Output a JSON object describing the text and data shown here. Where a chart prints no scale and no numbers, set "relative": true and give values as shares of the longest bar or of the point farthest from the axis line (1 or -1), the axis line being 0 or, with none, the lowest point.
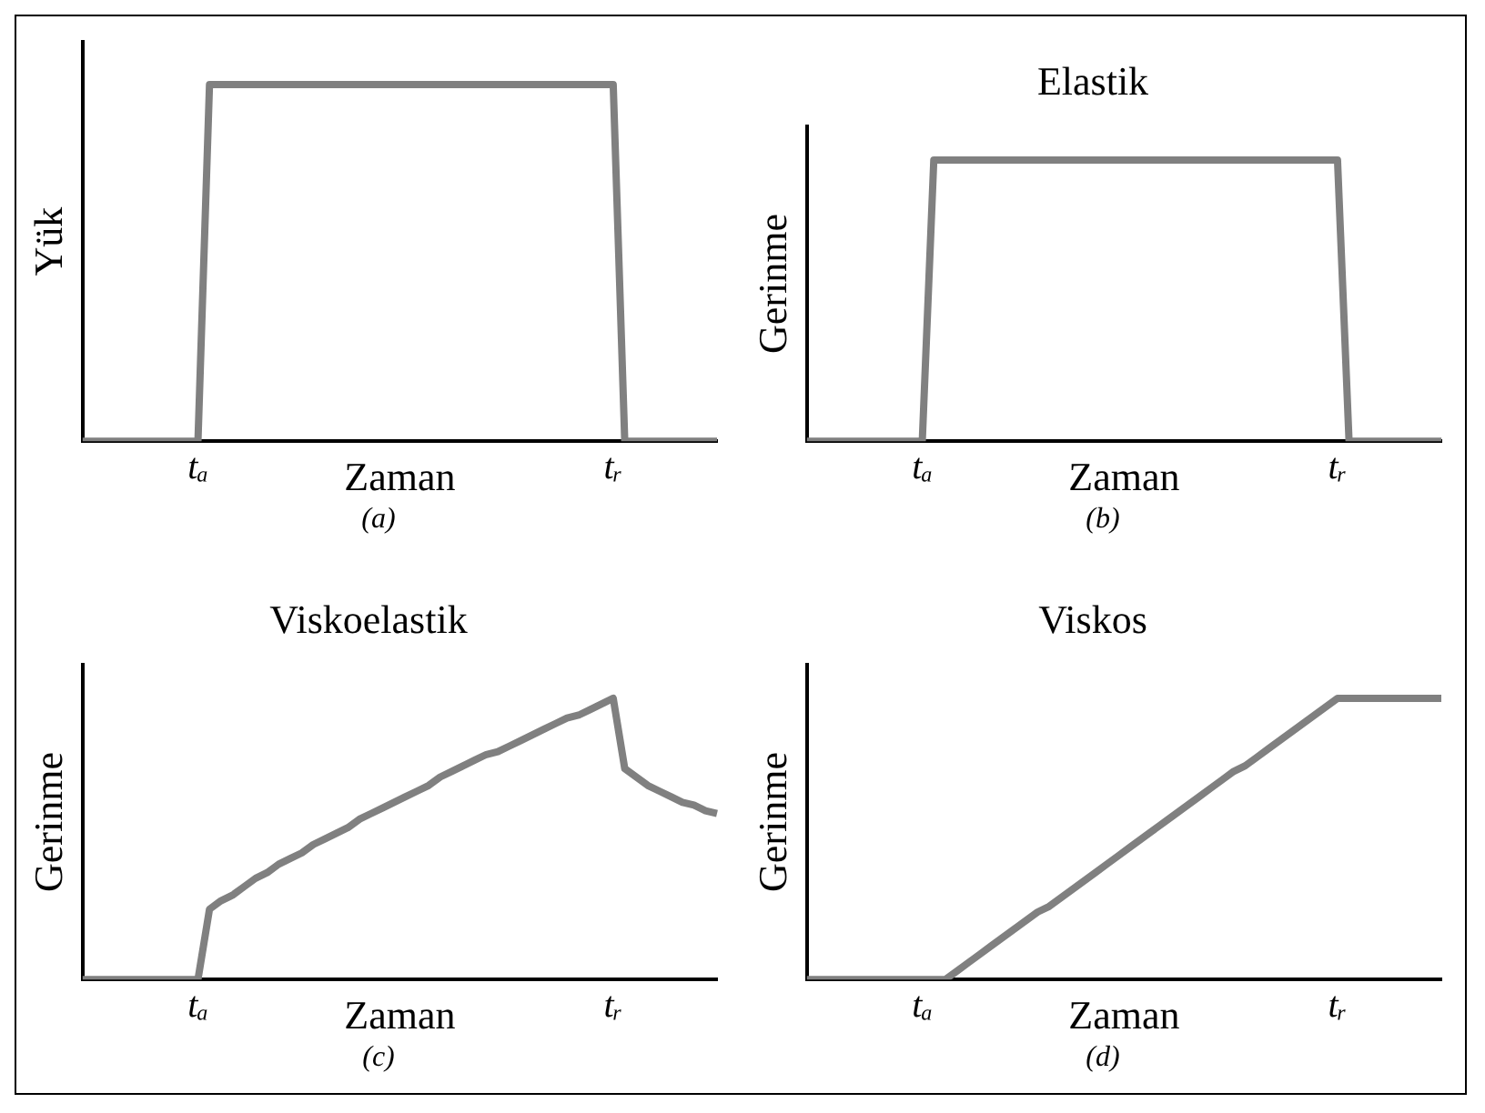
{
  "chart_data": [
    {
      "type": "line",
      "ylabel": "Yük",
      "xlabel": "Zaman",
      "relative": true,
      "grid": false,
      "legend": false,
      "marker": "none",
      "annotations": [
        "(a)"
      ],
      "categories": [
        null,
        null,
        null,
        null,
        null,
        null,
        null,
        null,
        null,
        null,
        "tₐ",
        null,
        null,
        null,
        null,
        null,
        null,
        null,
        null,
        null,
        null,
        null,
        null,
        null,
        null,
        null,
        null,
        null,
        null,
        null,
        null,
        null,
        null,
        null,
        null,
        null,
        null,
        null,
        null,
        null,
        null,
        null,
        null,
        null,
        null,
        null,
        "tᵣ",
        null,
        null,
        null,
        null,
        null,
        null,
        null,
        null,
        null
      ],
      "series": [
        {
          "color": "#808080",
          "values": [
            0,
            0,
            0,
            0,
            0,
            0,
            0,
            0,
            0,
            0,
            0,
            1,
            1,
            1,
            1,
            1,
            1,
            1,
            1,
            1,
            1,
            1,
            1,
            1,
            1,
            1,
            1,
            1,
            1,
            1,
            1,
            1,
            1,
            1,
            1,
            1,
            1,
            1,
            1,
            1,
            1,
            1,
            1,
            1,
            1,
            1,
            1,
            0,
            0,
            0,
            0,
            0,
            0,
            0,
            0,
            0
          ]
        }
      ]
    },
    {
      "type": "line",
      "title": "Elastik",
      "ylabel": "Gerinme",
      "xlabel": "Zaman",
      "relative": true,
      "grid": false,
      "legend": false,
      "marker": "none",
      "annotations": [
        "(b)"
      ],
      "categories": [
        null,
        null,
        null,
        null,
        null,
        null,
        null,
        null,
        null,
        null,
        "tₐ",
        null,
        null,
        null,
        null,
        null,
        null,
        null,
        null,
        null,
        null,
        null,
        null,
        null,
        null,
        null,
        null,
        null,
        null,
        null,
        null,
        null,
        null,
        null,
        null,
        null,
        null,
        null,
        null,
        null,
        null,
        null,
        null,
        null,
        null,
        null,
        "tᵣ",
        null,
        null,
        null,
        null,
        null,
        null,
        null,
        null,
        null
      ],
      "series": [
        {
          "color": "#808080",
          "values": [
            0,
            0,
            0,
            0,
            0,
            0,
            0,
            0,
            0,
            0,
            0,
            1,
            1,
            1,
            1,
            1,
            1,
            1,
            1,
            1,
            1,
            1,
            1,
            1,
            1,
            1,
            1,
            1,
            1,
            1,
            1,
            1,
            1,
            1,
            1,
            1,
            1,
            1,
            1,
            1,
            1,
            1,
            1,
            1,
            1,
            1,
            1,
            0,
            0,
            0,
            0,
            0,
            0,
            0,
            0,
            0
          ]
        }
      ]
    },
    {
      "type": "line",
      "title": "Viskoelastik",
      "ylabel": "Gerinme",
      "xlabel": "Zaman",
      "relative": true,
      "grid": false,
      "legend": false,
      "marker": "none",
      "annotations": [
        "(c)"
      ],
      "categories": [
        null,
        null,
        null,
        null,
        null,
        null,
        null,
        null,
        null,
        null,
        "tₐ",
        null,
        null,
        null,
        null,
        null,
        null,
        null,
        null,
        null,
        null,
        null,
        null,
        null,
        null,
        null,
        null,
        null,
        null,
        null,
        null,
        null,
        null,
        null,
        null,
        null,
        null,
        null,
        null,
        null,
        null,
        null,
        null,
        null,
        null,
        null,
        "tᵣ",
        null,
        null,
        null,
        null,
        null,
        null,
        null,
        null,
        null
      ],
      "series": [
        {
          "color": "#808080",
          "values": [
            0,
            0,
            0,
            0,
            0,
            0,
            0,
            0,
            0,
            0,
            0,
            0.25,
            0.28,
            0.3,
            0.33,
            0.36,
            0.38,
            0.41,
            0.43,
            0.45,
            0.48,
            0.5,
            0.52,
            0.54,
            0.57,
            0.59,
            0.61,
            0.63,
            0.65,
            0.67,
            0.69,
            0.72,
            0.74,
            0.76,
            0.78,
            0.8,
            0.81,
            0.83,
            0.85,
            0.87,
            0.89,
            0.91,
            0.93,
            0.94,
            0.96,
            0.98,
            1,
            0.75,
            0.72,
            0.69,
            0.67,
            0.65,
            0.63,
            0.62,
            0.6,
            0.59
          ]
        }
      ]
    },
    {
      "type": "line",
      "title": "Viskos",
      "ylabel": "Gerinme",
      "xlabel": "Zaman",
      "relative": true,
      "grid": false,
      "legend": false,
      "marker": "none",
      "annotations": [
        "(d)"
      ],
      "categories": [
        null,
        null,
        null,
        null,
        null,
        null,
        null,
        null,
        null,
        null,
        "tₐ",
        null,
        null,
        null,
        null,
        null,
        null,
        null,
        null,
        null,
        null,
        null,
        null,
        null,
        null,
        null,
        null,
        null,
        null,
        null,
        null,
        null,
        null,
        null,
        null,
        null,
        null,
        null,
        null,
        null,
        null,
        null,
        null,
        null,
        null,
        null,
        "tᵣ",
        null,
        null,
        null,
        null,
        null,
        null,
        null,
        null,
        null
      ],
      "series": [
        {
          "color": "#808080",
          "values": [
            0,
            0,
            0,
            0,
            0,
            0,
            0,
            0,
            0,
            0,
            0,
            0,
            0,
            0.03,
            0.06,
            0.09,
            0.12,
            0.15,
            0.18,
            0.21,
            0.24,
            0.26,
            0.29,
            0.32,
            0.35,
            0.38,
            0.41,
            0.44,
            0.47,
            0.5,
            0.53,
            0.56,
            0.59,
            0.62,
            0.65,
            0.68,
            0.71,
            0.74,
            0.76,
            0.79,
            0.82,
            0.85,
            0.88,
            0.91,
            0.94,
            0.97,
            1,
            1,
            1,
            1,
            1,
            1,
            1,
            1,
            1,
            1
          ]
        }
      ]
    }
  ]
}
